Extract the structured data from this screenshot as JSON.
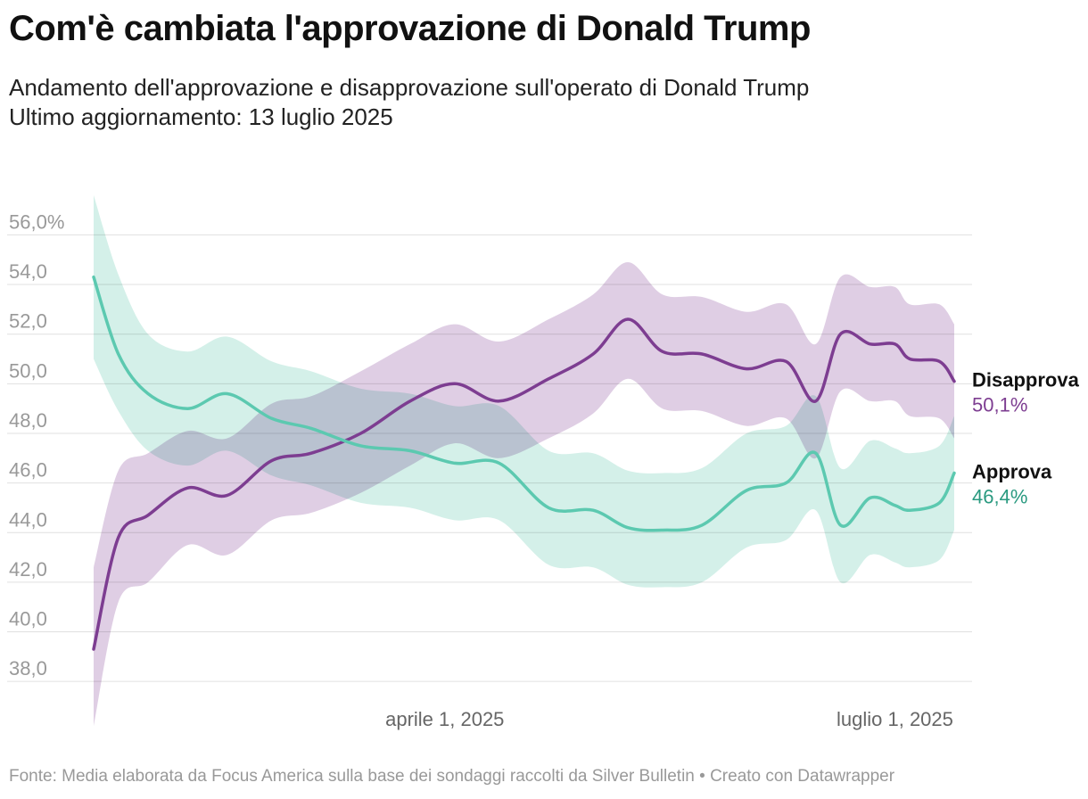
{
  "title": "Com'è cambiata l'approvazione di Donald Trump",
  "subtitle_line1": "Andamento dell'approvazione e disapprovazione sull'operato di Donald Trump",
  "subtitle_line2": "Ultimo aggiornamento: 13 luglio 2025",
  "footer": "Fonte: Media elaborata da Focus America sulla base dei sondaggi raccolti da Silver Bulletin • Creato con Datawrapper",
  "colors": {
    "approve": "#5cc9b0",
    "approve_band": "#cdeee5",
    "disapprove": "#7d3d91",
    "disapprove_band": "#dac6e0",
    "approve_value_text": "#2a9a80",
    "disapprove_value_text": "#7d3d91",
    "grid": "#e0e0e0"
  },
  "chart_data": {
    "type": "line",
    "x_start": "2025-01-20",
    "x_end": "2025-07-13",
    "ylim": [
      37,
      57
    ],
    "y_ticks": [
      {
        "value": 56,
        "label": "56,0%"
      },
      {
        "value": 54,
        "label": "54,0"
      },
      {
        "value": 52,
        "label": "52,0"
      },
      {
        "value": 50,
        "label": "50,0"
      },
      {
        "value": 48,
        "label": "48,0"
      },
      {
        "value": 46,
        "label": "46,0"
      },
      {
        "value": 44,
        "label": "44,0"
      },
      {
        "value": 42,
        "label": "42,0"
      },
      {
        "value": 40,
        "label": "40,0"
      },
      {
        "value": 38,
        "label": "38,0"
      }
    ],
    "x_ticks": [
      {
        "date": "2025-04-01",
        "label": "aprile 1, 2025"
      },
      {
        "date": "2025-07-01",
        "label": "luglio 1, 2025"
      }
    ],
    "grid": true,
    "series": [
      {
        "name": "Disapprova",
        "end_label": "50,1%",
        "color_key": "disapprove",
        "points": [
          {
            "date": "2025-01-20",
            "value": 39.3,
            "low": 36.2,
            "high": 42.6
          },
          {
            "date": "2025-01-25",
            "value": 43.8,
            "low": 41.2,
            "high": 46.5
          },
          {
            "date": "2025-01-31",
            "value": 44.7,
            "low": 42.0,
            "high": 47.2
          },
          {
            "date": "2025-02-08",
            "value": 45.8,
            "low": 43.5,
            "high": 48.1
          },
          {
            "date": "2025-02-16",
            "value": 45.5,
            "low": 43.1,
            "high": 47.8
          },
          {
            "date": "2025-02-25",
            "value": 46.9,
            "low": 44.5,
            "high": 49.2
          },
          {
            "date": "2025-03-05",
            "value": 47.2,
            "low": 44.8,
            "high": 49.5
          },
          {
            "date": "2025-03-15",
            "value": 48.0,
            "low": 45.6,
            "high": 50.5
          },
          {
            "date": "2025-03-25",
            "value": 49.3,
            "low": 46.7,
            "high": 51.6
          },
          {
            "date": "2025-04-03",
            "value": 50.0,
            "low": 47.6,
            "high": 52.4
          },
          {
            "date": "2025-04-12",
            "value": 49.3,
            "low": 47.0,
            "high": 51.7
          },
          {
            "date": "2025-04-22",
            "value": 50.2,
            "low": 47.8,
            "high": 52.6
          },
          {
            "date": "2025-05-01",
            "value": 51.2,
            "low": 48.8,
            "high": 53.6
          },
          {
            "date": "2025-05-08",
            "value": 52.6,
            "low": 50.2,
            "high": 54.9
          },
          {
            "date": "2025-05-15",
            "value": 51.3,
            "low": 49.0,
            "high": 53.6
          },
          {
            "date": "2025-05-23",
            "value": 51.2,
            "low": 48.9,
            "high": 53.5
          },
          {
            "date": "2025-06-01",
            "value": 50.6,
            "low": 48.3,
            "high": 52.9
          },
          {
            "date": "2025-06-09",
            "value": 50.9,
            "low": 48.6,
            "high": 53.2
          },
          {
            "date": "2025-06-15",
            "value": 49.3,
            "low": 47.0,
            "high": 51.6
          },
          {
            "date": "2025-06-20",
            "value": 52.0,
            "low": 49.7,
            "high": 54.3
          },
          {
            "date": "2025-06-26",
            "value": 51.6,
            "low": 49.3,
            "high": 53.9
          },
          {
            "date": "2025-07-01",
            "value": 51.6,
            "low": 49.3,
            "high": 53.9
          },
          {
            "date": "2025-07-04",
            "value": 51.0,
            "low": 48.7,
            "high": 53.2
          },
          {
            "date": "2025-07-10",
            "value": 50.9,
            "low": 48.6,
            "high": 53.2
          },
          {
            "date": "2025-07-13",
            "value": 50.1,
            "low": 47.8,
            "high": 52.4
          }
        ]
      },
      {
        "name": "Approva",
        "end_label": "46,4%",
        "color_key": "approve",
        "points": [
          {
            "date": "2025-01-20",
            "value": 54.3,
            "low": 51.0,
            "high": 57.6
          },
          {
            "date": "2025-01-25",
            "value": 51.2,
            "low": 48.9,
            "high": 54.4
          },
          {
            "date": "2025-01-31",
            "value": 49.6,
            "low": 47.3,
            "high": 52.0
          },
          {
            "date": "2025-02-08",
            "value": 49.0,
            "low": 46.7,
            "high": 51.3
          },
          {
            "date": "2025-02-16",
            "value": 49.6,
            "low": 47.3,
            "high": 51.9
          },
          {
            "date": "2025-02-25",
            "value": 48.6,
            "low": 46.3,
            "high": 50.9
          },
          {
            "date": "2025-03-05",
            "value": 48.2,
            "low": 45.9,
            "high": 50.5
          },
          {
            "date": "2025-03-15",
            "value": 47.5,
            "low": 45.2,
            "high": 49.8
          },
          {
            "date": "2025-03-25",
            "value": 47.3,
            "low": 45.0,
            "high": 49.6
          },
          {
            "date": "2025-04-03",
            "value": 46.8,
            "low": 44.5,
            "high": 49.1
          },
          {
            "date": "2025-04-12",
            "value": 46.8,
            "low": 44.5,
            "high": 49.1
          },
          {
            "date": "2025-04-22",
            "value": 45.0,
            "low": 42.7,
            "high": 47.3
          },
          {
            "date": "2025-05-01",
            "value": 44.9,
            "low": 42.6,
            "high": 47.2
          },
          {
            "date": "2025-05-08",
            "value": 44.2,
            "low": 41.9,
            "high": 46.5
          },
          {
            "date": "2025-05-15",
            "value": 44.1,
            "low": 41.8,
            "high": 46.4
          },
          {
            "date": "2025-05-23",
            "value": 44.3,
            "low": 42.0,
            "high": 46.6
          },
          {
            "date": "2025-06-01",
            "value": 45.7,
            "low": 43.4,
            "high": 48.0
          },
          {
            "date": "2025-06-09",
            "value": 46.0,
            "low": 43.7,
            "high": 48.3
          },
          {
            "date": "2025-06-15",
            "value": 47.2,
            "low": 44.9,
            "high": 49.5
          },
          {
            "date": "2025-06-20",
            "value": 44.3,
            "low": 42.0,
            "high": 46.6
          },
          {
            "date": "2025-06-26",
            "value": 45.4,
            "low": 43.1,
            "high": 47.7
          },
          {
            "date": "2025-07-01",
            "value": 45.1,
            "low": 42.8,
            "high": 47.4
          },
          {
            "date": "2025-07-04",
            "value": 44.9,
            "low": 42.6,
            "high": 47.2
          },
          {
            "date": "2025-07-10",
            "value": 45.2,
            "low": 42.9,
            "high": 47.5
          },
          {
            "date": "2025-07-13",
            "value": 46.4,
            "low": 44.1,
            "high": 48.7
          }
        ]
      }
    ]
  }
}
